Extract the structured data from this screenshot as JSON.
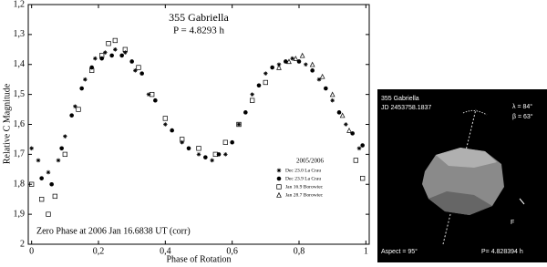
{
  "chart_data": {
    "type": "scatter",
    "title": "355 Gabriella",
    "subtitle": "P = 4.8293 h",
    "y_label": "Relative C Magnitude",
    "x_label": "Phase of Rotation",
    "annotation": "Zero Phase at 2006 Jan 16.6838 UT (corr)",
    "legend_title": "2005/2006",
    "xlim": [
      -0.01,
      1.01
    ],
    "ylim": [
      1.2,
      2.0
    ],
    "y_inverted": true,
    "xticks": [
      0,
      {
        "value": 0.2,
        "label": "0,2"
      },
      {
        "value": 0.4,
        "label": "0,4"
      },
      {
        "value": 0.6,
        "label": "0,6"
      },
      {
        "value": 0.8,
        "label": "0,8"
      },
      1
    ],
    "yticks": [
      {
        "value": 1.2,
        "label": "1,2"
      },
      {
        "value": 1.3,
        "label": "1,3"
      },
      {
        "value": 1.4,
        "label": "1,4"
      },
      {
        "value": 1.5,
        "label": "1,5"
      },
      {
        "value": 1.6,
        "label": "1,6"
      },
      {
        "value": 1.7,
        "label": "1,7"
      },
      {
        "value": 1.8,
        "label": "1,8"
      },
      {
        "value": 1.9,
        "label": "1,9"
      },
      2
    ],
    "series": [
      {
        "name": "Dec 23.0 La Crau",
        "color": "#000000",
        "marker": "asterisk",
        "x": [
          0.0,
          0.02,
          0.05,
          0.08,
          0.1,
          0.13,
          0.16,
          0.19,
          0.22,
          0.25,
          0.28,
          0.31,
          0.35,
          0.4,
          0.45,
          0.5,
          0.54,
          0.58,
          0.62,
          0.66,
          0.7,
          0.74,
          0.78,
          0.82,
          0.86,
          0.9,
          0.94,
          0.98
        ],
        "values": [
          1.68,
          1.72,
          1.76,
          1.72,
          1.64,
          1.54,
          1.45,
          1.38,
          1.36,
          1.35,
          1.36,
          1.42,
          1.5,
          1.6,
          1.66,
          1.7,
          1.72,
          1.7,
          1.6,
          1.5,
          1.43,
          1.4,
          1.38,
          1.4,
          1.45,
          1.52,
          1.6,
          1.68
        ]
      },
      {
        "name": "Dec 23.9 La Crau",
        "color": "#000000",
        "marker": "circle",
        "x": [
          0.03,
          0.06,
          0.09,
          0.12,
          0.15,
          0.18,
          0.21,
          0.24,
          0.27,
          0.3,
          0.33,
          0.37,
          0.42,
          0.47,
          0.52,
          0.56,
          0.6,
          0.64,
          0.68,
          0.72,
          0.76,
          0.8,
          0.84,
          0.88,
          0.92,
          0.96,
          0.99
        ],
        "values": [
          1.78,
          1.8,
          1.68,
          1.57,
          1.48,
          1.41,
          1.38,
          1.37,
          1.37,
          1.39,
          1.43,
          1.52,
          1.62,
          1.68,
          1.71,
          1.7,
          1.66,
          1.56,
          1.47,
          1.41,
          1.39,
          1.39,
          1.42,
          1.48,
          1.56,
          1.63,
          1.67
        ]
      },
      {
        "name": "Jan 16.9 Borowiec",
        "color": "#000000",
        "marker": "square",
        "x": [
          0.0,
          0.03,
          0.05,
          0.07,
          0.1,
          0.14,
          0.18,
          0.21,
          0.23,
          0.25,
          0.28,
          0.32,
          0.36,
          0.4,
          0.45,
          0.5,
          0.55,
          0.58,
          0.62,
          0.66,
          0.7,
          0.97,
          0.99
        ],
        "values": [
          1.8,
          1.85,
          1.9,
          1.84,
          1.7,
          1.55,
          1.42,
          1.37,
          1.33,
          1.32,
          1.35,
          1.41,
          1.5,
          1.58,
          1.65,
          1.68,
          1.7,
          1.66,
          1.6,
          1.52,
          1.46,
          1.72,
          1.78
        ]
      },
      {
        "name": "Jan 28.7 Borowiec",
        "color": "#000000",
        "marker": "triangle",
        "x": [
          0.74,
          0.77,
          0.79,
          0.81,
          0.84,
          0.87,
          0.9,
          0.93,
          0.95
        ],
        "values": [
          1.41,
          1.39,
          1.38,
          1.37,
          1.4,
          1.44,
          1.5,
          1.57,
          1.62
        ]
      }
    ]
  },
  "image_panel": {
    "name": "355 Gabriella",
    "jd": "JD 2453758.1837",
    "lambda": "λ = 84°",
    "beta": "β = 63°",
    "pole": "F",
    "aspect": "Aspect = 95°",
    "period": "P= 4.828394 h"
  }
}
